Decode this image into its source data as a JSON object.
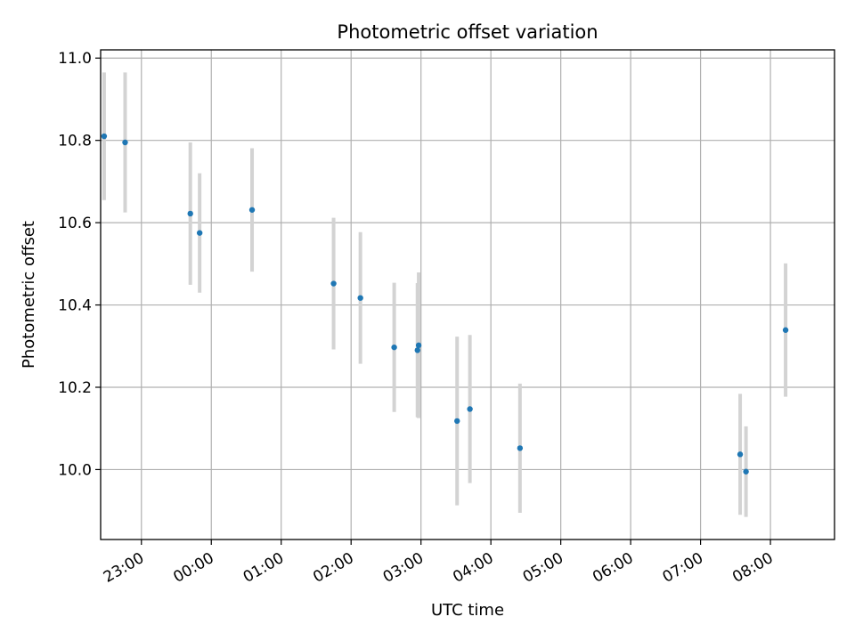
{
  "chart_data": {
    "type": "scatter",
    "title": "Photometric offset variation",
    "xlabel": "UTC time",
    "ylabel": "Photometric offset",
    "xlim": [
      "22:25",
      "08:55"
    ],
    "ylim": [
      9.83,
      11.02
    ],
    "x_ticks": [
      "23:00",
      "00:00",
      "01:00",
      "02:00",
      "03:00",
      "04:00",
      "05:00",
      "06:00",
      "07:00",
      "08:00"
    ],
    "y_ticks": [
      "10.0",
      "10.2",
      "10.4",
      "10.6",
      "10.8",
      "11.0"
    ],
    "grid": true,
    "colors": {
      "points": "#1f77b4",
      "error_bars": "#d3d3d3",
      "grid": "#b0b0b0"
    },
    "series": [
      {
        "points": [
          {
            "x": "22:28",
            "y": 10.81,
            "err": 0.155
          },
          {
            "x": "22:46",
            "y": 10.795,
            "err": 0.17
          },
          {
            "x": "23:42",
            "y": 10.622,
            "err": 0.173
          },
          {
            "x": "23:50",
            "y": 10.575,
            "err": 0.145
          },
          {
            "x": "00:35",
            "y": 10.631,
            "err": 0.15
          },
          {
            "x": "01:45",
            "y": 10.452,
            "err": 0.16
          },
          {
            "x": "02:08",
            "y": 10.417,
            "err": 0.16
          },
          {
            "x": "02:37",
            "y": 10.297,
            "err": 0.157
          },
          {
            "x": "02:57",
            "y": 10.29,
            "err": 0.163
          },
          {
            "x": "02:58",
            "y": 10.302,
            "err": 0.177
          },
          {
            "x": "03:31",
            "y": 10.118,
            "err": 0.205
          },
          {
            "x": "03:42",
            "y": 10.147,
            "err": 0.18
          },
          {
            "x": "04:25",
            "y": 10.052,
            "err": 0.157
          },
          {
            "x": "07:34",
            "y": 10.037,
            "err": 0.147
          },
          {
            "x": "07:39",
            "y": 9.995,
            "err": 0.11
          },
          {
            "x": "08:13",
            "y": 10.339,
            "err": 0.162
          }
        ]
      }
    ]
  }
}
